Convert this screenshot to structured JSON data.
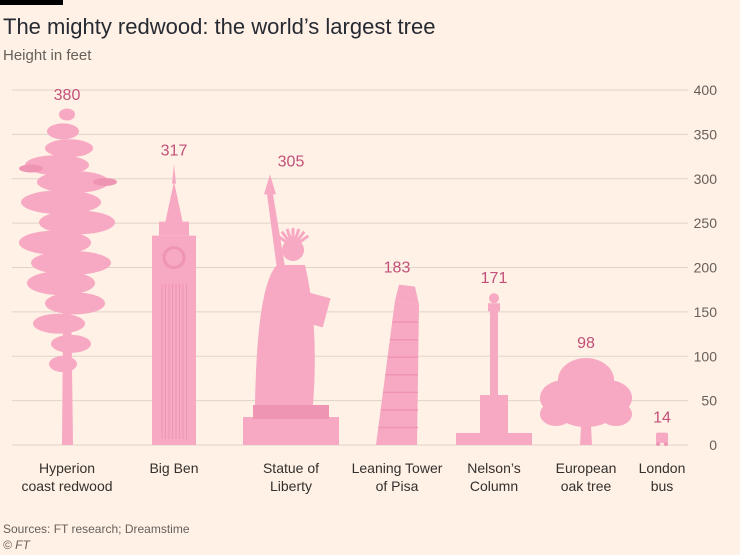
{
  "header": {
    "title": "The mighty redwood: the world’s largest tree",
    "subtitle": "Height in feet"
  },
  "footer": {
    "source": "Sources: FT research; Dreamstime",
    "credit": "© FT"
  },
  "colors": {
    "background": "#fff1e5",
    "shape": "#f7a8c3",
    "shape_dark": "#ef95b4",
    "value_label": "#c2507a",
    "grid": "#e0d4c8"
  },
  "chart_data": {
    "type": "bar",
    "title": "The mighty redwood: the world’s largest tree",
    "ylabel": "Height in feet",
    "ylim": [
      0,
      400
    ],
    "yticks": [
      0,
      50,
      100,
      150,
      200,
      250,
      300,
      350,
      400
    ],
    "grid": true,
    "categories": [
      [
        "Hyperion",
        "coast redwood"
      ],
      [
        "Big Ben"
      ],
      [
        "Statue of",
        "Liberty"
      ],
      [
        "Leaning Tower",
        "of Pisa"
      ],
      [
        "Nelson’s",
        "Column"
      ],
      [
        "European",
        "oak tree"
      ],
      [
        "London",
        "bus"
      ]
    ],
    "values": [
      380,
      317,
      305,
      183,
      171,
      98,
      14
    ],
    "icons": [
      "redwood-tree-icon",
      "big-ben-icon",
      "statue-of-liberty-icon",
      "leaning-tower-icon",
      "nelsons-column-icon",
      "oak-tree-icon",
      "london-bus-icon"
    ]
  }
}
